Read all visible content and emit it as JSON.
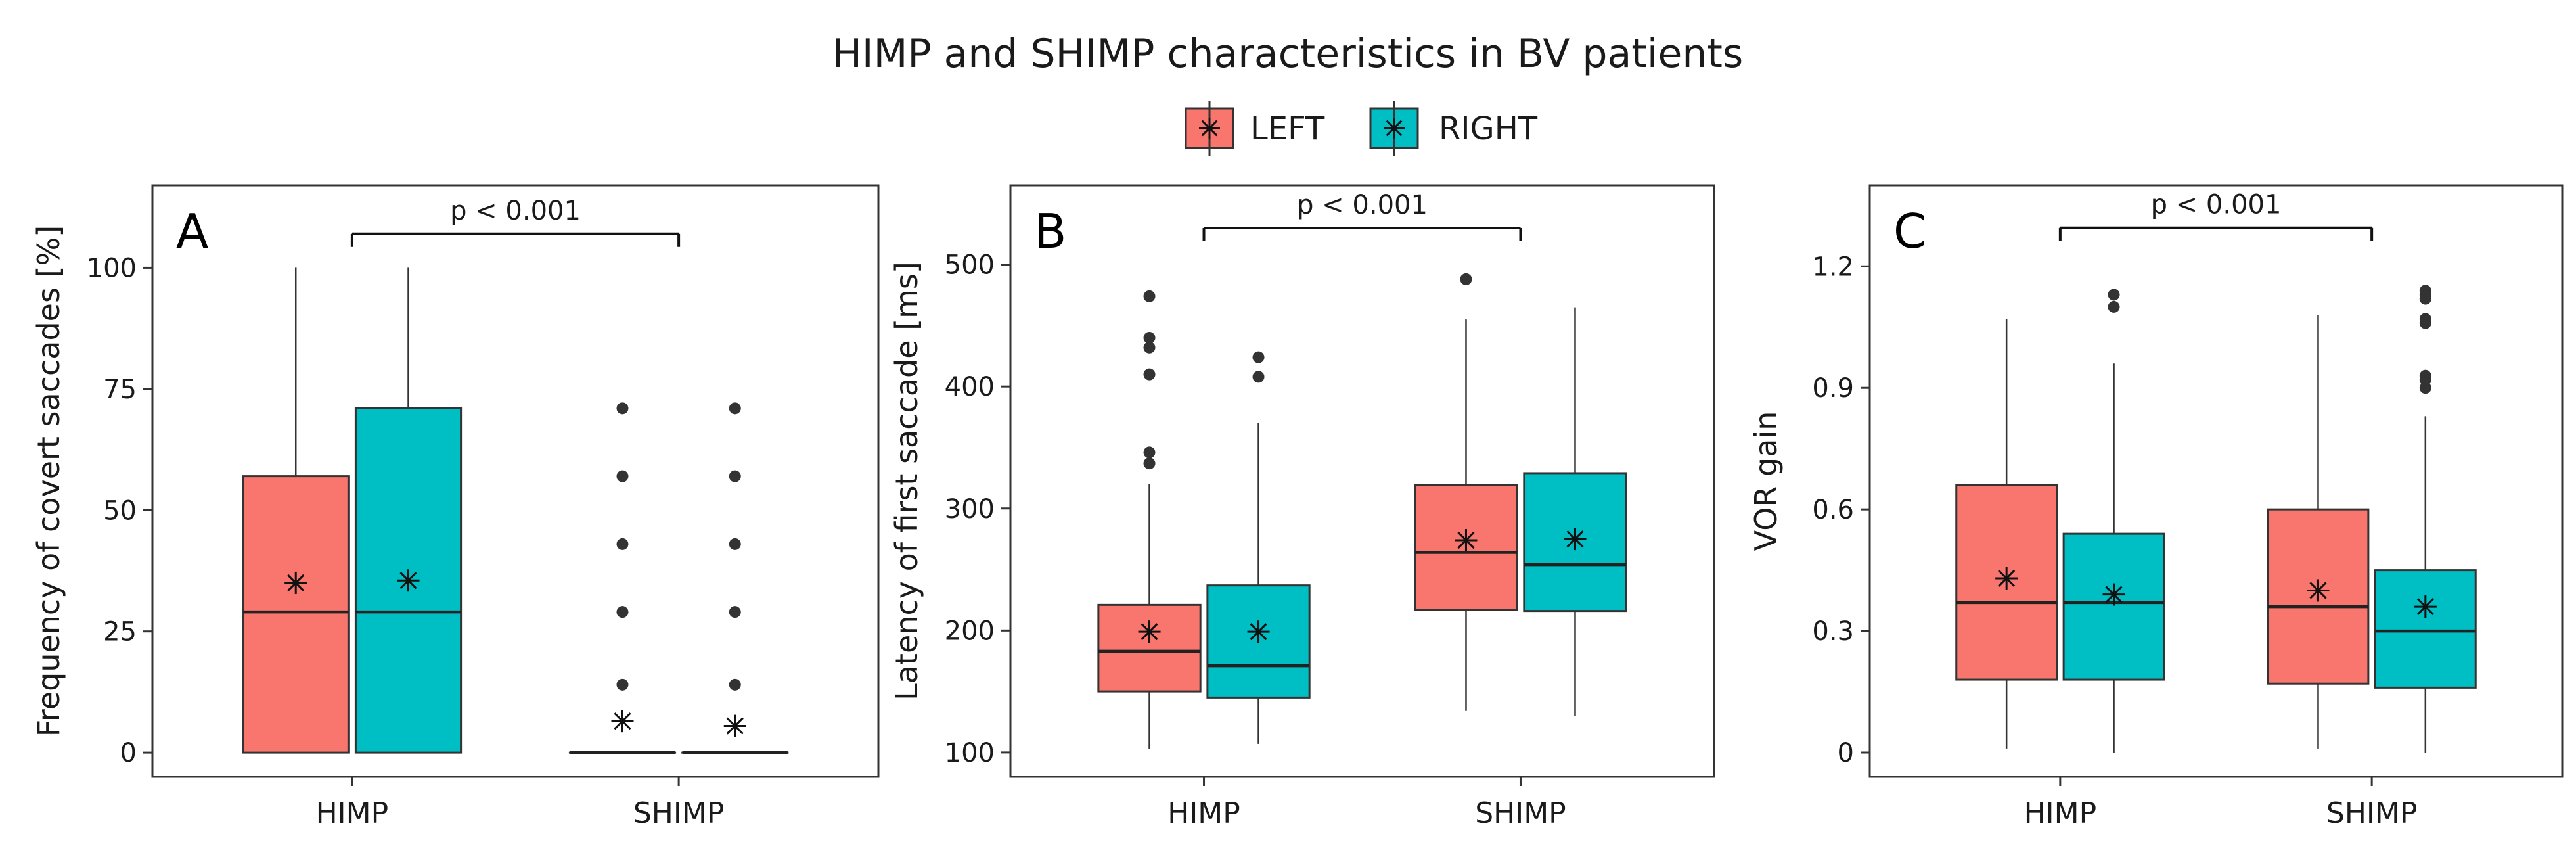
{
  "figure": {
    "title": "HIMP and SHIMP characteristics in BV patients",
    "legend": [
      {
        "label": "LEFT",
        "color": "#F8766D"
      },
      {
        "label": "RIGHT",
        "color": "#00BFC4"
      }
    ],
    "stroke_color": "#333333"
  },
  "chart_data": [
    {
      "type": "box",
      "panel": "A",
      "ylabel": "Frequency of covert saccades [%]",
      "ylim": [
        -5,
        117
      ],
      "yticks": [
        0,
        25,
        50,
        75,
        100
      ],
      "ytick_labels": [
        "0",
        "25",
        "50",
        "75",
        "100"
      ],
      "categories": [
        "HIMP",
        "SHIMP"
      ],
      "significance": {
        "label": "p < 0.001",
        "y": 107
      },
      "boxes": [
        {
          "group": "HIMP",
          "side": "LEFT",
          "min": 0,
          "q1": 0,
          "median": 29,
          "q3": 57,
          "max": 100,
          "mean": 35,
          "outliers": []
        },
        {
          "group": "HIMP",
          "side": "RIGHT",
          "min": 0,
          "q1": 0,
          "median": 29,
          "q3": 71,
          "max": 100,
          "mean": 35.5,
          "outliers": []
        },
        {
          "group": "SHIMP",
          "side": "LEFT",
          "min": 0,
          "q1": 0,
          "median": 0,
          "q3": 0,
          "max": 0,
          "mean": 6.5,
          "outliers": [
            14,
            29,
            43,
            57,
            71
          ]
        },
        {
          "group": "SHIMP",
          "side": "RIGHT",
          "min": 0,
          "q1": 0,
          "median": 0,
          "q3": 0,
          "max": 0,
          "mean": 5.5,
          "outliers": [
            14,
            29,
            43,
            57,
            71
          ]
        }
      ]
    },
    {
      "type": "box",
      "panel": "B",
      "ylabel": "Latency of first saccade [ms]",
      "ylim": [
        80,
        565
      ],
      "yticks": [
        100,
        200,
        300,
        400,
        500
      ],
      "ytick_labels": [
        "100",
        "200",
        "300",
        "400",
        "500"
      ],
      "categories": [
        "HIMP",
        "SHIMP"
      ],
      "significance": {
        "label": "p < 0.001",
        "y": 530
      },
      "boxes": [
        {
          "group": "HIMP",
          "side": "LEFT",
          "min": 103,
          "q1": 150,
          "median": 183,
          "q3": 221,
          "max": 320,
          "mean": 199,
          "outliers": [
            337,
            346,
            410,
            432,
            440,
            474
          ]
        },
        {
          "group": "HIMP",
          "side": "RIGHT",
          "min": 107,
          "q1": 145,
          "median": 171,
          "q3": 237,
          "max": 370,
          "mean": 199,
          "outliers": [
            408,
            424
          ]
        },
        {
          "group": "SHIMP",
          "side": "LEFT",
          "min": 134,
          "q1": 217,
          "median": 264,
          "q3": 319,
          "max": 455,
          "mean": 274,
          "outliers": [
            488
          ]
        },
        {
          "group": "SHIMP",
          "side": "RIGHT",
          "min": 130,
          "q1": 216,
          "median": 254,
          "q3": 329,
          "max": 465,
          "mean": 275,
          "outliers": []
        }
      ]
    },
    {
      "type": "box",
      "panel": "C",
      "ylabel": "VOR gain",
      "ylim": [
        -0.06,
        1.4
      ],
      "yticks": [
        0,
        0.3,
        0.6,
        0.9,
        1.2
      ],
      "ytick_labels": [
        "0",
        "0.3",
        "0.6",
        "0.9",
        "1.2"
      ],
      "categories": [
        "HIMP",
        "SHIMP"
      ],
      "significance": {
        "label": "p < 0.001",
        "y": 1.295
      },
      "boxes": [
        {
          "group": "HIMP",
          "side": "LEFT",
          "min": 0.01,
          "q1": 0.18,
          "median": 0.37,
          "q3": 0.66,
          "max": 1.07,
          "mean": 0.43,
          "outliers": []
        },
        {
          "group": "HIMP",
          "side": "RIGHT",
          "min": 0.0,
          "q1": 0.18,
          "median": 0.37,
          "q3": 0.54,
          "max": 0.96,
          "mean": 0.39,
          "outliers": [
            1.1,
            1.13
          ]
        },
        {
          "group": "SHIMP",
          "side": "LEFT",
          "min": 0.01,
          "q1": 0.17,
          "median": 0.36,
          "q3": 0.6,
          "max": 1.08,
          "mean": 0.4,
          "outliers": []
        },
        {
          "group": "SHIMP",
          "side": "RIGHT",
          "min": 0.0,
          "q1": 0.16,
          "median": 0.3,
          "q3": 0.45,
          "max": 0.83,
          "mean": 0.36,
          "outliers": [
            0.9,
            0.92,
            0.93,
            1.06,
            1.07,
            1.12,
            1.13,
            1.14
          ]
        }
      ]
    }
  ]
}
